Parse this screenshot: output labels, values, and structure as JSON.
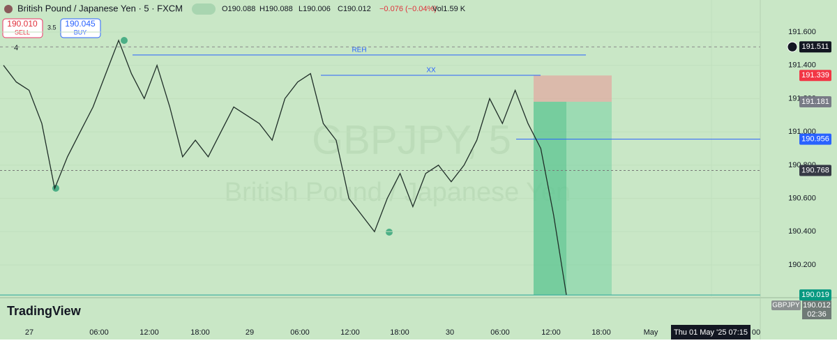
{
  "header": {
    "title": "British Pound / Japanese Yen · 5 · FXCM",
    "ohlc": [
      "O190.088",
      "H190.088",
      "L190.006",
      "C190.012",
      "−0.076 (−0.04%)",
      "Vol1.59 K"
    ]
  },
  "trade": {
    "sell_price": "190.010",
    "sell": "SELL",
    "spread": "3.5",
    "buy_price": "190.045",
    "buy": "BUY"
  },
  "indicator_count": "4",
  "watermark": {
    "symbol": "GBPJPY, 5",
    "description": "British Pound / Japanese Yen"
  },
  "price_axis": {
    "ticks": [
      {
        "value": 191.6,
        "label": "191.600"
      },
      {
        "value": 191.4,
        "label": "191.400"
      },
      {
        "value": 191.2,
        "label": "191.200"
      },
      {
        "value": 191.0,
        "label": "191.000"
      },
      {
        "value": 190.8,
        "label": "190.800"
      },
      {
        "value": 190.6,
        "label": "190.600"
      },
      {
        "value": 190.4,
        "label": "190.400"
      },
      {
        "value": 190.2,
        "label": "190.200"
      }
    ],
    "labels": [
      {
        "value": 191.511,
        "label": "191.511"
      },
      {
        "value": 191.339,
        "label": "191.339"
      },
      {
        "value": 191.181,
        "label": "191.181"
      },
      {
        "value": 190.956,
        "label": "190.956"
      },
      {
        "value": 190.768,
        "label": "190.768"
      },
      {
        "value": 190.019,
        "label": "190.019"
      }
    ]
  },
  "levels": [
    {
      "label": "REH",
      "value": 191.462
    },
    {
      "label": "XX",
      "value": 191.34
    }
  ],
  "price_path": [
    191.4,
    191.3,
    191.25,
    191.05,
    190.66,
    190.85,
    191.0,
    191.15,
    191.35,
    191.55,
    191.35,
    191.2,
    191.4,
    191.15,
    190.85,
    190.95,
    190.85,
    191.0,
    191.15,
    191.1,
    191.05,
    190.95,
    191.2,
    191.3,
    191.35,
    191.05,
    190.95,
    190.6,
    190.5,
    190.4,
    190.6,
    190.75,
    190.55,
    190.75,
    190.8,
    190.7,
    190.8,
    190.95,
    191.2,
    191.05,
    191.25,
    191.05,
    190.9,
    190.5,
    190.02
  ],
  "time_axis": {
    "labels": [
      "27",
      "06:00",
      "12:00",
      "18:00",
      "29",
      "06:00",
      "12:00",
      "18:00",
      "30",
      "06:00",
      "12:00",
      "18:00",
      "May"
    ],
    "crosshair": "Thu 01 May '25   07:15",
    "last": "00"
  },
  "symbol_tag": "GBPJPY",
  "last_price": "190.012",
  "countdown": "02:36",
  "brand": "TradingView"
}
